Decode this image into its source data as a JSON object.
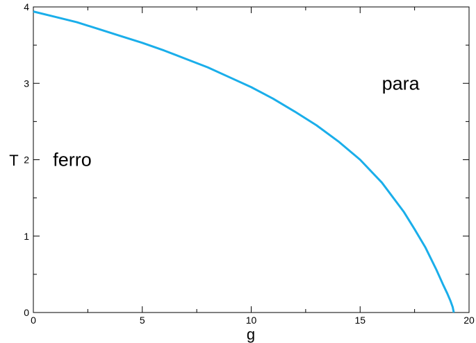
{
  "chart_data": {
    "type": "line",
    "title": "",
    "xlabel": "g",
    "ylabel": "T",
    "xlim": [
      0,
      20
    ],
    "ylim": [
      0,
      4
    ],
    "x_ticks": [
      0,
      5,
      10,
      15,
      20
    ],
    "y_ticks": [
      0,
      1,
      2,
      3,
      4
    ],
    "grid": false,
    "legend": "none",
    "series": [
      {
        "color": "#1aaeea",
        "x": [
          0,
          1,
          2,
          3,
          4,
          5,
          6,
          7,
          8,
          9,
          10,
          11,
          12,
          13,
          14,
          15,
          16,
          17,
          17.5,
          18,
          18.5,
          18.8,
          19.0,
          19.15,
          19.25,
          19.3
        ],
        "y": [
          3.94,
          3.87,
          3.8,
          3.71,
          3.62,
          3.53,
          3.43,
          3.32,
          3.21,
          3.08,
          2.95,
          2.8,
          2.63,
          2.45,
          2.24,
          2.0,
          1.7,
          1.32,
          1.09,
          0.85,
          0.56,
          0.37,
          0.25,
          0.15,
          0.07,
          0.0
        ]
      }
    ],
    "annotations": [
      {
        "text": "ferro",
        "x": 0.9,
        "y": 2.0
      },
      {
        "text": "para",
        "x": 16.0,
        "y": 3.0
      }
    ]
  }
}
